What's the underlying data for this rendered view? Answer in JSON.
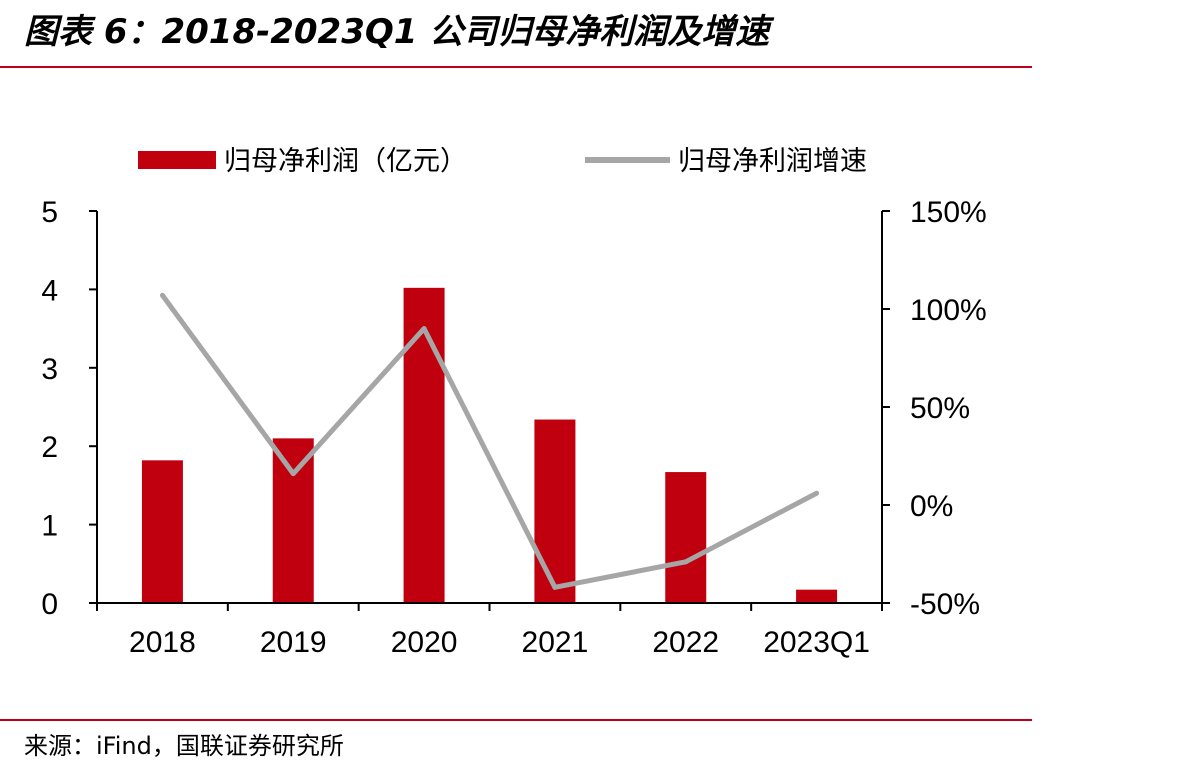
{
  "figure": {
    "title": "图表 6：2018-2023Q1 公司归母净利润及增速",
    "source": "来源：iFind，国联证券研究所"
  },
  "chart_data": {
    "type": "bar",
    "categories": [
      "2018",
      "2019",
      "2020",
      "2021",
      "2022",
      "2023Q1"
    ],
    "series": [
      {
        "name": "归母净利润（亿元）",
        "type": "bar",
        "axis": "left",
        "color": "#c0000f",
        "values": [
          1.82,
          2.1,
          4.02,
          2.34,
          1.67,
          0.17
        ]
      },
      {
        "name": "归母净利润增速",
        "type": "line",
        "axis": "right",
        "color": "#a6a6a6",
        "values": [
          1.07,
          0.16,
          0.9,
          -0.42,
          -0.29,
          0.06
        ]
      }
    ],
    "y_left": {
      "range": [
        0,
        5
      ],
      "ticks": [
        "0",
        "1",
        "2",
        "3",
        "4",
        "5"
      ]
    },
    "y_right": {
      "range": [
        -0.5,
        1.5
      ],
      "ticks": [
        "-50%",
        "0%",
        "50%",
        "100%",
        "150%"
      ],
      "format": "percent"
    },
    "legend_position": "top",
    "grid": false
  }
}
